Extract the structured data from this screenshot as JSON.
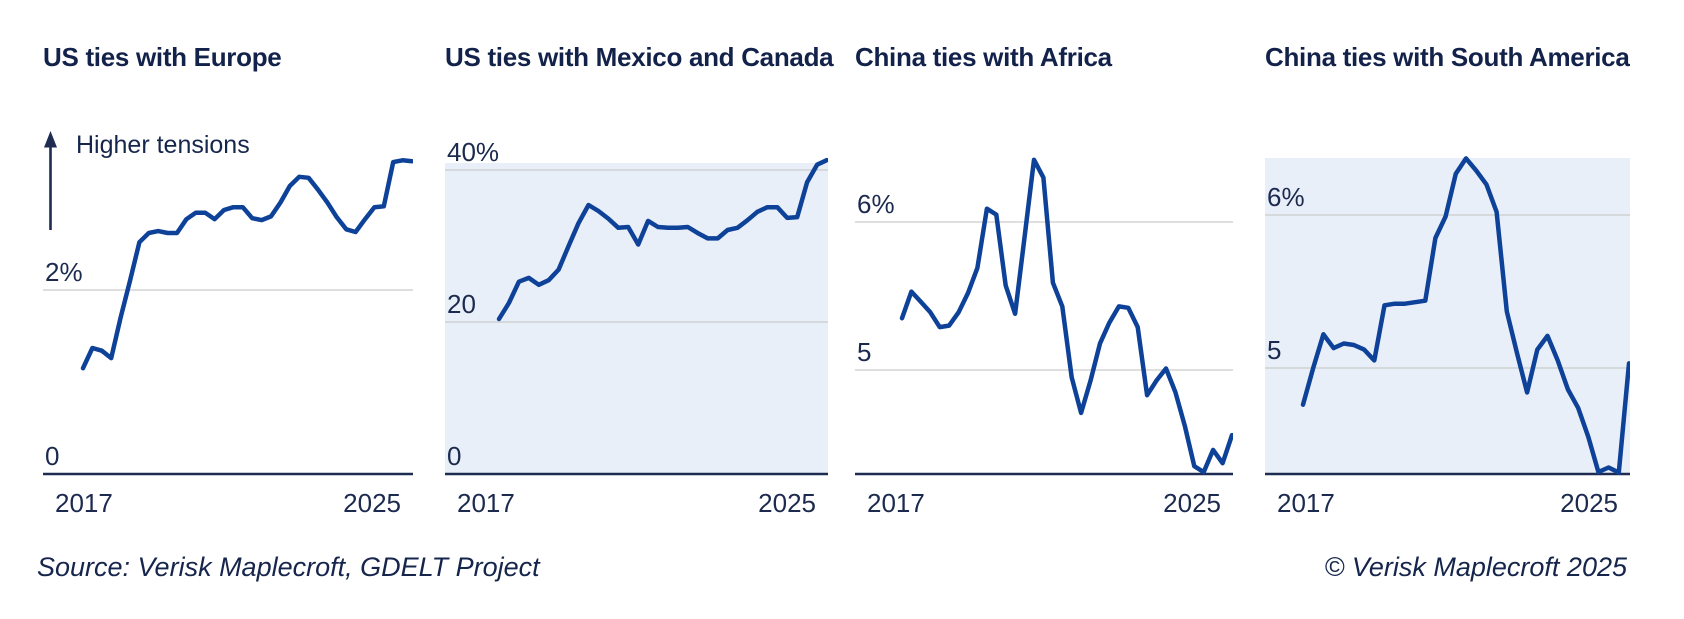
{
  "footer": {
    "source": "Source: Verisk Maplecroft, GDELT Project",
    "copyright": "© Verisk Maplecroft 2025"
  },
  "colors": {
    "line": "#0e4198",
    "panel_bg": "#e9eff9",
    "gridline": "#cccccc",
    "axis": "#1e2c52",
    "title_text": "#13224a",
    "label_text": "#1b2a4e"
  },
  "chart_data": [
    {
      "type": "line",
      "title": "US ties with Europe",
      "annotation": "Higher tensions",
      "unit": "%",
      "x_ticks": [
        "2017",
        "2025"
      ],
      "x_span_years": [
        2017,
        2025.75
      ],
      "shaded_panel": false,
      "y_gridlines": [
        {
          "value": 2,
          "label": "2%"
        }
      ],
      "baseline": {
        "value": 0,
        "label": "0"
      },
      "values": [
        1.15,
        1.37,
        1.34,
        1.26,
        1.7,
        2.1,
        2.52,
        2.62,
        2.64,
        2.62,
        2.62,
        2.77,
        2.84,
        2.84,
        2.77,
        2.87,
        2.9,
        2.9,
        2.78,
        2.76,
        2.8,
        2.95,
        3.13,
        3.23,
        3.22,
        3.09,
        2.95,
        2.79,
        2.66,
        2.63,
        2.77,
        2.9,
        2.91,
        3.39,
        3.41,
        3.4
      ]
    },
    {
      "type": "line",
      "title": "US ties with Mexico and Canada",
      "unit": "%",
      "x_ticks": [
        "2017",
        "2025"
      ],
      "x_span_years": [
        2017,
        2025.75
      ],
      "shaded_panel": true,
      "y_gridlines": [
        {
          "value": 40,
          "label": "40%"
        },
        {
          "value": 20,
          "label": "20"
        }
      ],
      "baseline": {
        "value": 0,
        "label": "0"
      },
      "values": [
        20.4,
        22.5,
        25.3,
        25.8,
        24.9,
        25.5,
        26.9,
        30.0,
        33.0,
        35.4,
        34.6,
        33.6,
        32.4,
        32.5,
        30.2,
        33.3,
        32.5,
        32.4,
        32.4,
        32.5,
        31.7,
        31.0,
        31.0,
        32.1,
        32.4,
        33.4,
        34.5,
        35.1,
        35.1,
        33.7,
        33.8,
        38.4,
        40.7,
        41.3
      ]
    },
    {
      "type": "line",
      "title": "China ties with Africa",
      "unit": "%",
      "x_ticks": [
        "2017",
        "2025"
      ],
      "x_span_years": [
        2017,
        2025.75
      ],
      "shaded_panel": false,
      "y_gridlines": [
        {
          "value": 6,
          "label": "6%"
        },
        {
          "value": 5,
          "label": "5"
        }
      ],
      "baseline": {
        "value": 4.3,
        "label": ""
      },
      "values": [
        5.35,
        5.53,
        5.46,
        5.39,
        5.29,
        5.3,
        5.39,
        5.52,
        5.69,
        6.09,
        6.05,
        5.57,
        5.38,
        5.9,
        6.42,
        6.3,
        5.59,
        5.43,
        4.95,
        4.71,
        4.93,
        5.18,
        5.32,
        5.43,
        5.42,
        5.29,
        4.83,
        4.93,
        5.01,
        4.85,
        4.62,
        4.35,
        4.31,
        4.46,
        4.37,
        4.56
      ]
    },
    {
      "type": "line",
      "title": "China ties with South America",
      "unit": "%",
      "x_ticks": [
        "2017",
        "2025"
      ],
      "x_span_years": [
        2017,
        2025.75
      ],
      "shaded_panel": true,
      "y_gridlines": [
        {
          "value": 6,
          "label": "6%"
        },
        {
          "value": 5,
          "label": "5"
        }
      ],
      "baseline": {
        "value": 4.3,
        "label": ""
      },
      "values": [
        4.76,
        5.0,
        5.22,
        5.13,
        5.16,
        5.15,
        5.12,
        5.05,
        5.41,
        5.42,
        5.42,
        5.43,
        5.44,
        5.85,
        5.99,
        6.27,
        6.37,
        6.29,
        6.2,
        6.02,
        5.37,
        5.1,
        4.84,
        5.12,
        5.21,
        5.05,
        4.86,
        4.74,
        4.55,
        4.32,
        4.35,
        4.3,
        5.03
      ]
    }
  ]
}
